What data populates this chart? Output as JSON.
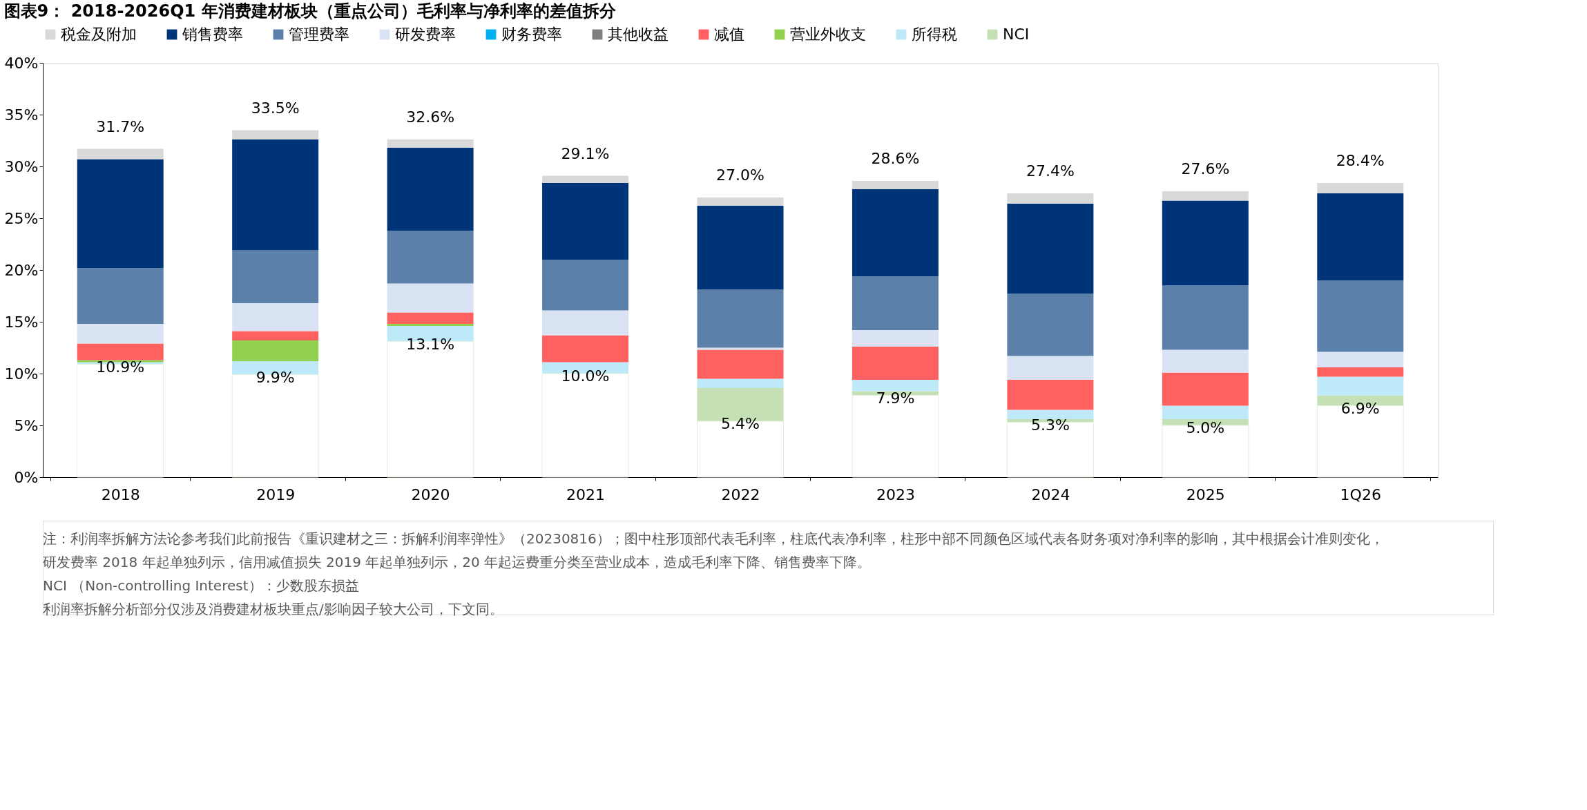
{
  "chart_data": {
    "type": "bar",
    "stacked": true,
    "title": "图表9： 2018-2026Q1 年消费建材板块（重点公司）毛利率与净利率的差值拆分",
    "categories": [
      "2018",
      "2019",
      "2020",
      "2021",
      "2022",
      "2023",
      "2024",
      "2025",
      "1Q26"
    ],
    "series": [
      {
        "color": "#ffffff",
        "values": [
          10.9,
          9.9,
          13.1,
          10.0,
          5.4,
          7.9,
          5.3,
          5.0,
          6.9
        ],
        "value_labels": [
          "10.9%",
          "9.9%",
          "13.1%",
          "10.0%",
          "5.4%",
          "7.9%",
          "5.3%",
          "5.0%",
          "6.9%"
        ]
      },
      {
        "name": "NCI",
        "color": "#c5e0b4",
        "values": [
          0,
          0,
          0,
          0,
          3.2,
          0.4,
          0.3,
          0.6,
          1.0
        ]
      },
      {
        "name": "所得税",
        "color": "#bde9f8",
        "values": [
          0.2,
          1.3,
          1.5,
          1.1,
          0.9,
          1.1,
          0.9,
          1.3,
          1.8
        ]
      },
      {
        "name": "营业外收支",
        "color": "#92d050",
        "values": [
          0.2,
          2.0,
          0.2,
          0,
          0,
          0,
          0,
          0,
          0
        ]
      },
      {
        "name": "减值",
        "color": "#ff6161",
        "values": [
          1.6,
          0.9,
          1.1,
          2.6,
          2.8,
          3.2,
          2.9,
          3.2,
          0.9
        ]
      },
      {
        "name": "其他收益",
        "color": "#7f7f7f",
        "values": [
          0,
          0,
          0,
          0,
          0,
          0,
          0,
          0,
          0
        ]
      },
      {
        "name": "财务费率",
        "color": "#00b0f0",
        "values": [
          0,
          0,
          0,
          0,
          0,
          0,
          0,
          0,
          0
        ]
      },
      {
        "name": "研发费率",
        "color": "#dae3f3",
        "values": [
          1.9,
          2.7,
          2.8,
          2.4,
          0.2,
          1.6,
          2.3,
          2.2,
          1.5
        ]
      },
      {
        "name": "管理费率",
        "color": "#5b80aa",
        "values": [
          5.4,
          5.1,
          5.1,
          4.9,
          5.6,
          5.2,
          6.0,
          6.2,
          6.9
        ]
      },
      {
        "name": "销售费率",
        "color": "#003478",
        "values": [
          10.5,
          10.7,
          8.0,
          7.4,
          8.1,
          8.4,
          8.7,
          8.2,
          8.4
        ]
      },
      {
        "name": "税金及附加",
        "color": "#d9d9d9",
        "values": [
          1.0,
          0.9,
          0.8,
          0.7,
          0.8,
          0.8,
          1.0,
          0.9,
          1.0
        ]
      }
    ],
    "totals": [
      "31.7%",
      "33.5%",
      "32.6%",
      "29.1%",
      "27.0%",
      "28.6%",
      "27.4%",
      "27.6%",
      "28.4%"
    ],
    "ylim": [
      0,
      40
    ],
    "yticks": [
      {
        "value": 0,
        "label": "0%"
      },
      {
        "value": 5,
        "label": "5%"
      },
      {
        "value": 10,
        "label": "10%"
      },
      {
        "value": 15,
        "label": "15%"
      },
      {
        "value": 20,
        "label": "20%"
      },
      {
        "value": 25,
        "label": "25%"
      },
      {
        "value": 30,
        "label": "30%"
      },
      {
        "value": 35,
        "label": "35%"
      },
      {
        "value": 40,
        "label": "40%"
      }
    ],
    "grid": false,
    "legend": "top",
    "annotations": [
      "注：利润率拆解方法论参考我们此前报告《重识建材之三：拆解利润率弹性》（20230816）；图中柱形顶部代表毛利率，柱底代表净利率，柱形中部不同颜色区域代表各财务项对净利率的影响，其中根据会计准则变化，研发费率 2018 年起单独列示，信用减值损失 2019 年起单独列示，20 年起运费重分类至营业成本，造成毛利率下降、销售费率下降。",
      "NCI （Non-controlling Interest）：少数股东损益",
      "利润率拆解分析部分仅涉及消费建材板块重点/影响因子较大公司，下文同。"
    ]
  }
}
